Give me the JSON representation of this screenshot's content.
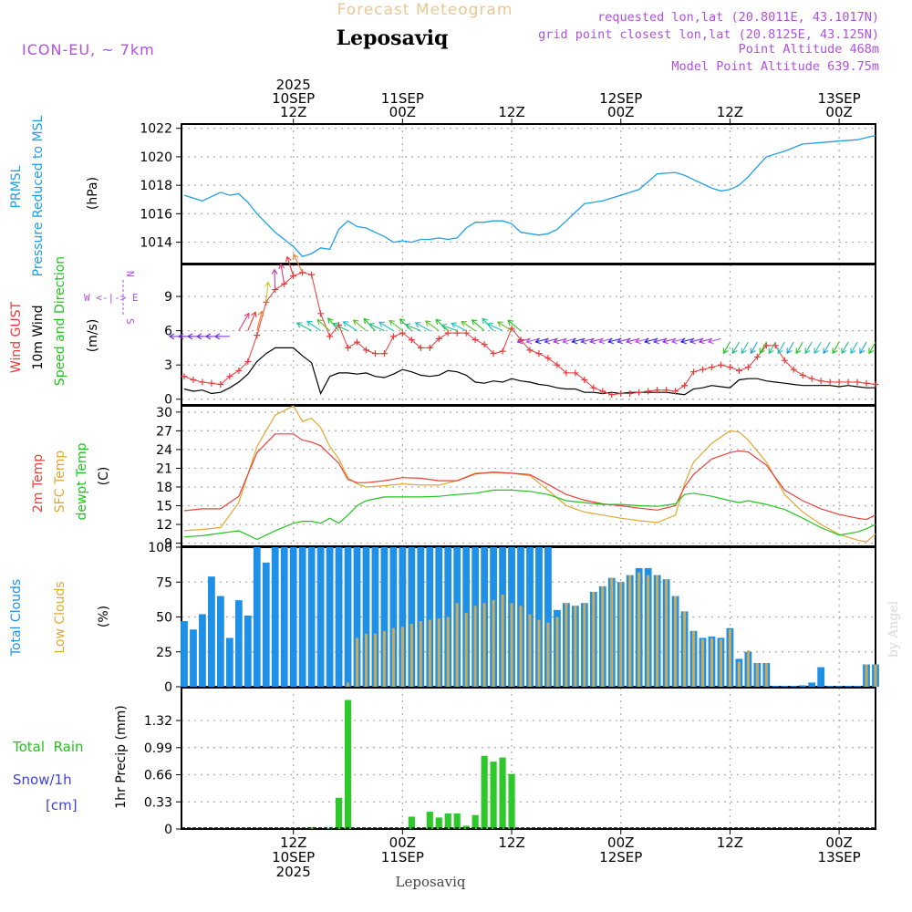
{
  "header": {
    "subtitle": "Forecast Meteogram",
    "title": "Leposaviq",
    "model": "ICON-EU, ~ 7km",
    "requested": "requested lon,lat (20.8011E, 43.1017N)",
    "grid_point": "grid point closest lon,lat (20.8125E, 43.125N)",
    "point_altitude": "Point Altitude 468m",
    "model_altitude": "Model Point Altitude 639.75m",
    "footer_name": "Leposaviq",
    "credit": "by Angel"
  },
  "time_axis": {
    "top": [
      {
        "h": 12,
        "lines": [
          "2025",
          "10SEP",
          "12Z"
        ]
      },
      {
        "h": 24,
        "lines": [
          "11SEP",
          "00Z"
        ]
      },
      {
        "h": 36,
        "lines": [
          "12Z"
        ]
      },
      {
        "h": 48,
        "lines": [
          "12SEP",
          "00Z"
        ]
      },
      {
        "h": 60,
        "lines": [
          "12Z"
        ]
      },
      {
        "h": 72,
        "lines": [
          "13SEP",
          "00Z"
        ]
      }
    ],
    "bottom": [
      {
        "h": 12,
        "lines": [
          "12Z",
          "10SEP",
          "2025"
        ]
      },
      {
        "h": 24,
        "lines": [
          "00Z",
          "11SEP"
        ]
      },
      {
        "h": 36,
        "lines": [
          "12Z"
        ]
      },
      {
        "h": 48,
        "lines": [
          "00Z",
          "12SEP"
        ]
      },
      {
        "h": 60,
        "lines": [
          "12Z"
        ]
      },
      {
        "h": 72,
        "lines": [
          "00Z",
          "13SEP"
        ]
      }
    ]
  },
  "labels": {
    "p1": [
      "PRMSL",
      "Pressure Reduced to MSL"
    ],
    "p1_unit": "(hPa)",
    "p2_gust": "Wind GUST",
    "p2_wind": "10m Wind",
    "p2_dir": "Speed and Direction",
    "p2_unit": "(m/s)",
    "compass_n": "N",
    "compass_s": "S",
    "compass_we": "W <-|-> E",
    "p3_t2m": "2m Temp",
    "p3_sfc": "SFC Temp",
    "p3_dew": "dewpt Temp",
    "p3_unit": "(C)",
    "p4_total": "Total Clouds",
    "p4_low": "Low Clouds",
    "p4_unit": "(%)",
    "p5_rain": "Total  Rain",
    "p5_snow": "Snow/1h",
    "p5_cm": "[cm]",
    "p5_unit": "1hr Precip (mm)"
  },
  "colors": {
    "pressure": "#1ea0e6",
    "gust": "#e83a3a",
    "wind": "#000000",
    "t2m": "#e8403a",
    "sfc": "#e0a830",
    "dew": "#22c31e",
    "total_clouds": "#1e90e8",
    "low_clouds": "#c8aa5a",
    "rain": "#2ec82a",
    "purple": "#b050e0",
    "header": "#e8c890"
  },
  "chart_data": [
    {
      "type": "line",
      "title": "PRMSL Pressure Reduced to MSL",
      "ylabel": "(hPa)",
      "ylim": [
        1012.5,
        1022.3
      ],
      "yticks": [
        1014,
        1016,
        1018,
        1020,
        1022
      ],
      "x_hours": [
        0,
        2,
        4,
        5,
        6,
        7,
        8,
        10,
        12,
        13,
        14,
        15,
        16,
        17,
        18,
        19,
        20,
        21,
        22,
        23,
        24,
        25,
        26,
        27,
        28,
        29,
        30,
        31,
        32,
        33,
        34,
        35,
        36,
        37,
        38,
        39,
        40,
        41,
        42,
        44,
        46,
        48,
        50,
        52,
        54,
        55,
        56,
        57,
        58,
        59,
        60,
        61,
        62,
        63,
        64,
        66,
        68,
        70,
        72,
        74,
        76
      ],
      "series": [
        {
          "name": "PRMSL",
          "values": [
            1017.3,
            1016.9,
            1017.5,
            1017.3,
            1017.4,
            1016.8,
            1016.0,
            1014.7,
            1013.7,
            1013.0,
            1013.2,
            1013.6,
            1013.5,
            1014.9,
            1015.5,
            1015.1,
            1015.0,
            1014.7,
            1014.4,
            1014.0,
            1014.1,
            1014.0,
            1014.2,
            1014.2,
            1014.3,
            1014.2,
            1014.3,
            1015.0,
            1015.4,
            1015.4,
            1015.5,
            1015.5,
            1015.3,
            1014.7,
            1014.6,
            1014.5,
            1014.6,
            1014.9,
            1015.5,
            1016.7,
            1016.9,
            1017.3,
            1017.7,
            1018.8,
            1018.9,
            1018.7,
            1018.4,
            1018.1,
            1017.8,
            1017.6,
            1017.7,
            1018.0,
            1018.6,
            1019.3,
            1020.0,
            1020.4,
            1020.9,
            1021.0,
            1021.1,
            1021.2,
            1021.5
          ]
        }
      ]
    },
    {
      "type": "line",
      "title": "Wind GUST / 10m Wind Speed and Direction",
      "ylabel": "(m/s)",
      "ylim": [
        -0.5,
        11.8
      ],
      "yticks": [
        0,
        3,
        6,
        9
      ],
      "x_hours": [
        0,
        1,
        2,
        3,
        4,
        5,
        6,
        7,
        8,
        9,
        10,
        11,
        12,
        13,
        14,
        15,
        16,
        17,
        18,
        19,
        20,
        21,
        22,
        23,
        24,
        25,
        26,
        27,
        28,
        29,
        30,
        31,
        32,
        33,
        34,
        35,
        36,
        37,
        38,
        39,
        40,
        41,
        42,
        43,
        44,
        45,
        46,
        47,
        48,
        49,
        50,
        51,
        52,
        53,
        54,
        55,
        56,
        57,
        58,
        59,
        60,
        61,
        62,
        63,
        64,
        65,
        66,
        67,
        68,
        69,
        70,
        71,
        72,
        73,
        74,
        75,
        76
      ],
      "series": [
        {
          "name": "Wind GUST",
          "values": [
            2.0,
            1.7,
            1.5,
            1.4,
            1.3,
            2.0,
            2.5,
            3.3,
            5.6,
            8.5,
            9.6,
            10.1,
            10.8,
            11.1,
            10.9,
            7.5,
            5.5,
            6.5,
            4.5,
            5.0,
            4.3,
            4.0,
            4.0,
            5.5,
            5.8,
            5.2,
            4.5,
            4.5,
            5.3,
            5.8,
            5.8,
            5.8,
            5.2,
            4.8,
            4.0,
            4.2,
            6.2,
            5.2,
            4.3,
            4.0,
            3.6,
            3.0,
            2.3,
            2.3,
            1.7,
            1.0,
            0.7,
            0.4,
            0.5,
            0.5,
            0.6,
            0.7,
            0.8,
            0.8,
            0.7,
            1.2,
            2.4,
            2.6,
            2.8,
            3.0,
            2.8,
            2.5,
            2.8,
            3.7,
            4.7,
            4.7,
            3.4,
            2.6,
            2.1,
            1.8,
            1.6,
            1.5,
            1.5,
            1.5,
            1.5,
            1.4,
            1.3
          ]
        },
        {
          "name": "10m Wind",
          "values": [
            0.9,
            0.7,
            0.8,
            0.5,
            0.6,
            1.0,
            1.5,
            2.2,
            3.3,
            4.0,
            4.5,
            4.5,
            4.5,
            3.8,
            3.2,
            0.5,
            2.0,
            2.3,
            2.3,
            2.2,
            2.3,
            2.0,
            1.9,
            2.2,
            2.6,
            2.4,
            2.1,
            2.0,
            2.1,
            2.5,
            2.4,
            2.1,
            1.5,
            1.4,
            1.6,
            1.5,
            1.8,
            1.6,
            1.5,
            1.3,
            1.2,
            1.0,
            0.9,
            0.9,
            0.6,
            0.6,
            0.5,
            0.6,
            0.5,
            0.6,
            0.6,
            0.6,
            0.6,
            0.6,
            0.5,
            0.4,
            0.9,
            1.0,
            1.2,
            1.1,
            1.0,
            1.7,
            1.8,
            1.8,
            1.6,
            1.5,
            1.4,
            1.3,
            1.2,
            1.2,
            1.2,
            1.2,
            1.1,
            1.2,
            1.1,
            1.0,
            1.0
          ]
        }
      ]
    },
    {
      "type": "line",
      "title": "2m Temp / SFC Temp / dewpt Temp",
      "ylabel": "(C)",
      "ylim": [
        8.5,
        31
      ],
      "yticks": [
        9,
        12,
        15,
        18,
        21,
        24,
        27,
        30
      ],
      "x_hours": [
        0,
        2,
        4,
        6,
        8,
        10,
        12,
        13,
        14,
        15,
        16,
        17,
        18,
        19,
        20,
        22,
        24,
        26,
        28,
        30,
        32,
        34,
        36,
        38,
        40,
        42,
        44,
        46,
        48,
        50,
        52,
        54,
        55,
        56,
        58,
        60,
        61,
        62,
        64,
        66,
        68,
        70,
        72,
        74,
        75,
        76
      ],
      "series": [
        {
          "name": "2m Temp",
          "values": [
            14.2,
            14.5,
            14.5,
            16.5,
            23.5,
            26.5,
            26.5,
            25.5,
            25.2,
            24.6,
            23.2,
            21.8,
            19.2,
            18.7,
            18.7,
            19.0,
            19.5,
            19.4,
            19.0,
            19.0,
            20.1,
            20.4,
            20.2,
            20.0,
            18.4,
            16.8,
            15.9,
            15.3,
            15.0,
            14.6,
            14.3,
            15.0,
            18.0,
            20.0,
            22.5,
            23.5,
            23.8,
            23.6,
            21.5,
            17.5,
            15.8,
            14.5,
            13.6,
            13.0,
            12.8,
            13.5
          ]
        },
        {
          "name": "SFC Temp",
          "values": [
            11.0,
            11.2,
            11.5,
            15.5,
            24.5,
            29.5,
            31.0,
            28.5,
            29.0,
            27.5,
            24.5,
            22.5,
            19.5,
            18.5,
            18.0,
            18.2,
            18.5,
            18.3,
            18.3,
            19.0,
            20.2,
            20.3,
            20.2,
            19.8,
            17.5,
            15.0,
            14.0,
            13.5,
            13.0,
            12.6,
            12.3,
            13.5,
            18.5,
            22.0,
            25.0,
            27.0,
            26.8,
            25.5,
            22.0,
            16.8,
            14.0,
            12.0,
            10.4,
            9.5,
            9.2,
            10.5
          ]
        },
        {
          "name": "dewpt Temp",
          "values": [
            10.0,
            10.2,
            10.6,
            11.0,
            9.6,
            11.0,
            12.2,
            12.5,
            12.5,
            12.2,
            13.0,
            12.2,
            13.5,
            15.0,
            15.8,
            16.4,
            16.4,
            16.4,
            16.5,
            16.8,
            17.0,
            17.5,
            17.5,
            17.3,
            16.8,
            15.8,
            15.5,
            15.2,
            15.2,
            15.0,
            14.9,
            15.3,
            16.8,
            17.0,
            16.5,
            15.8,
            15.5,
            15.8,
            15.2,
            14.4,
            13.0,
            11.5,
            10.3,
            10.8,
            11.3,
            12.0
          ]
        }
      ]
    },
    {
      "type": "bar",
      "title": "Total Clouds / Low Clouds",
      "ylabel": "(%)",
      "ylim": [
        0,
        100
      ],
      "yticks": [
        0,
        25,
        50,
        75,
        100
      ],
      "categories_hours": [
        0,
        1,
        2,
        3,
        4,
        5,
        6,
        7,
        8,
        9,
        10,
        11,
        12,
        13,
        14,
        15,
        16,
        17,
        18,
        19,
        20,
        21,
        22,
        23,
        24,
        25,
        26,
        27,
        28,
        29,
        30,
        31,
        32,
        33,
        34,
        35,
        36,
        37,
        38,
        39,
        40,
        41,
        42,
        43,
        44,
        45,
        46,
        47,
        48,
        49,
        50,
        51,
        52,
        53,
        54,
        55,
        56,
        57,
        58,
        59,
        60,
        61,
        62,
        63,
        64,
        65,
        66,
        67,
        68,
        69,
        70,
        71,
        72,
        73,
        74,
        75,
        76
      ],
      "series": [
        {
          "name": "Total Clouds",
          "values": [
            47,
            41,
            52,
            79,
            65,
            35,
            62,
            51,
            100,
            89,
            100,
            100,
            100,
            100,
            100,
            100,
            100,
            100,
            100,
            100,
            100,
            100,
            100,
            100,
            100,
            100,
            100,
            100,
            100,
            100,
            100,
            100,
            100,
            100,
            100,
            100,
            100,
            100,
            100,
            100,
            100,
            55,
            60,
            58,
            60,
            68,
            72,
            78,
            75,
            80,
            85,
            85,
            80,
            77,
            65,
            54,
            40,
            35,
            36,
            35,
            42,
            20,
            25,
            17,
            17,
            0,
            0,
            0,
            1,
            3,
            14,
            0,
            0,
            0,
            0,
            16,
            16
          ]
        },
        {
          "name": "Low Clouds",
          "values": [
            0,
            0,
            0,
            0,
            0,
            0,
            0,
            0,
            0,
            0,
            0,
            0,
            0,
            0,
            0,
            0,
            0,
            0,
            3,
            35,
            38,
            38,
            40,
            42,
            43,
            45,
            47,
            48,
            49,
            50,
            60,
            53,
            58,
            60,
            62,
            66,
            60,
            58,
            52,
            48,
            46,
            50,
            60,
            58,
            60,
            68,
            72,
            78,
            75,
            80,
            82,
            80,
            80,
            77,
            65,
            54,
            40,
            34,
            35,
            34,
            41,
            18,
            26,
            17,
            17,
            0,
            0,
            0,
            0,
            0,
            0,
            0,
            0,
            0,
            0,
            16,
            16
          ]
        }
      ]
    },
    {
      "type": "bar",
      "title": "1hr Precip",
      "ylabel": "1hr Precip (mm)",
      "ylim": [
        0,
        1.72
      ],
      "yticks": [
        0,
        0.33,
        0.66,
        0.99,
        1.32
      ],
      "ytick_labels": [
        "0",
        "0.33",
        "0.66",
        "0.99",
        "1.32"
      ],
      "categories_hours": [
        14,
        16,
        17,
        18,
        25,
        27,
        28,
        29,
        30,
        31,
        32,
        33,
        34,
        35,
        36,
        37
      ],
      "series": [
        {
          "name": "Total Rain",
          "values": [
            0.02,
            0.01,
            0.38,
            1.57,
            0.15,
            0.21,
            0.14,
            0.19,
            0.19,
            0.04,
            0.17,
            0.89,
            0.82,
            0.87,
            0.67,
            0.0
          ]
        }
      ]
    }
  ]
}
